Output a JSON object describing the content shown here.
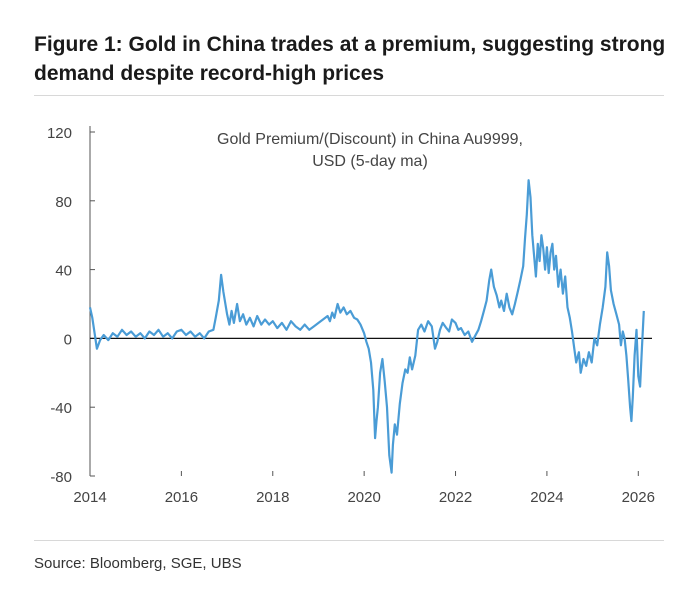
{
  "figure": {
    "title": "Figure 1: Gold in China trades at a premium, suggesting strong demand despite record-high prices",
    "source": "Source: Bloomberg, SGE, UBS"
  },
  "colors": {
    "series": "#4a9cd6",
    "zero_line": "#111111",
    "axis": "#555555"
  },
  "chart_data": {
    "type": "line",
    "title_lines": [
      "Gold Premium/(Discount)  in China Au9999,",
      "USD (5-day ma)"
    ],
    "xlabel": "",
    "ylabel": "",
    "xlim": [
      2014,
      2026.3
    ],
    "ylim": [
      -80,
      120
    ],
    "x_ticks": [
      2014,
      2016,
      2018,
      2020,
      2022,
      2024,
      2026
    ],
    "y_ticks": [
      120,
      80,
      40,
      0,
      -40,
      -80
    ],
    "grid": false,
    "series": [
      {
        "name": "Gold Premium/(Discount) in China Au9999, USD (5-day ma)",
        "points": [
          [
            2014.0,
            18
          ],
          [
            2014.05,
            12
          ],
          [
            2014.1,
            3
          ],
          [
            2014.15,
            -6
          ],
          [
            2014.22,
            -1
          ],
          [
            2014.3,
            2
          ],
          [
            2014.4,
            -1
          ],
          [
            2014.5,
            3
          ],
          [
            2014.6,
            1
          ],
          [
            2014.7,
            5
          ],
          [
            2014.8,
            2
          ],
          [
            2014.9,
            4
          ],
          [
            2015.0,
            1
          ],
          [
            2015.1,
            3
          ],
          [
            2015.2,
            0
          ],
          [
            2015.3,
            4
          ],
          [
            2015.4,
            2
          ],
          [
            2015.5,
            5
          ],
          [
            2015.6,
            1
          ],
          [
            2015.7,
            3
          ],
          [
            2015.8,
            0
          ],
          [
            2015.9,
            4
          ],
          [
            2016.0,
            5
          ],
          [
            2016.1,
            2
          ],
          [
            2016.2,
            4
          ],
          [
            2016.3,
            1
          ],
          [
            2016.4,
            3
          ],
          [
            2016.5,
            0
          ],
          [
            2016.6,
            4
          ],
          [
            2016.7,
            5
          ],
          [
            2016.75,
            12
          ],
          [
            2016.82,
            22
          ],
          [
            2016.87,
            37
          ],
          [
            2016.92,
            27
          ],
          [
            2017.0,
            14
          ],
          [
            2017.05,
            8
          ],
          [
            2017.1,
            16
          ],
          [
            2017.15,
            9
          ],
          [
            2017.22,
            20
          ],
          [
            2017.28,
            10
          ],
          [
            2017.35,
            14
          ],
          [
            2017.42,
            8
          ],
          [
            2017.5,
            12
          ],
          [
            2017.58,
            7
          ],
          [
            2017.66,
            13
          ],
          [
            2017.75,
            8
          ],
          [
            2017.83,
            11
          ],
          [
            2017.92,
            8
          ],
          [
            2018.0,
            10
          ],
          [
            2018.1,
            6
          ],
          [
            2018.2,
            9
          ],
          [
            2018.3,
            5
          ],
          [
            2018.4,
            10
          ],
          [
            2018.5,
            7
          ],
          [
            2018.6,
            5
          ],
          [
            2018.7,
            8
          ],
          [
            2018.8,
            5
          ],
          [
            2018.9,
            7
          ],
          [
            2019.0,
            9
          ],
          [
            2019.1,
            11
          ],
          [
            2019.2,
            13
          ],
          [
            2019.25,
            10
          ],
          [
            2019.3,
            15
          ],
          [
            2019.35,
            12
          ],
          [
            2019.42,
            20
          ],
          [
            2019.48,
            15
          ],
          [
            2019.55,
            18
          ],
          [
            2019.62,
            14
          ],
          [
            2019.7,
            16
          ],
          [
            2019.78,
            12
          ],
          [
            2019.85,
            11
          ],
          [
            2019.92,
            8
          ],
          [
            2020.0,
            3
          ],
          [
            2020.05,
            -2
          ],
          [
            2020.1,
            -6
          ],
          [
            2020.15,
            -14
          ],
          [
            2020.2,
            -30
          ],
          [
            2020.24,
            -58
          ],
          [
            2020.27,
            -48
          ],
          [
            2020.3,
            -40
          ],
          [
            2020.35,
            -20
          ],
          [
            2020.4,
            -12
          ],
          [
            2020.45,
            -25
          ],
          [
            2020.5,
            -40
          ],
          [
            2020.55,
            -68
          ],
          [
            2020.6,
            -78
          ],
          [
            2020.63,
            -62
          ],
          [
            2020.67,
            -50
          ],
          [
            2020.72,
            -56
          ],
          [
            2020.78,
            -38
          ],
          [
            2020.84,
            -26
          ],
          [
            2020.9,
            -18
          ],
          [
            2020.95,
            -20
          ],
          [
            2021.0,
            -11
          ],
          [
            2021.05,
            -18
          ],
          [
            2021.12,
            -10
          ],
          [
            2021.18,
            5
          ],
          [
            2021.25,
            8
          ],
          [
            2021.32,
            4
          ],
          [
            2021.4,
            10
          ],
          [
            2021.48,
            7
          ],
          [
            2021.55,
            -6
          ],
          [
            2021.6,
            -2
          ],
          [
            2021.66,
            5
          ],
          [
            2021.72,
            9
          ],
          [
            2021.8,
            6
          ],
          [
            2021.86,
            4
          ],
          [
            2021.92,
            11
          ],
          [
            2022.0,
            9
          ],
          [
            2022.06,
            5
          ],
          [
            2022.12,
            6
          ],
          [
            2022.2,
            2
          ],
          [
            2022.28,
            4
          ],
          [
            2022.36,
            -2
          ],
          [
            2022.42,
            1
          ],
          [
            2022.5,
            5
          ],
          [
            2022.56,
            10
          ],
          [
            2022.62,
            16
          ],
          [
            2022.68,
            22
          ],
          [
            2022.74,
            34
          ],
          [
            2022.78,
            40
          ],
          [
            2022.84,
            30
          ],
          [
            2022.9,
            25
          ],
          [
            2022.96,
            18
          ],
          [
            2023.0,
            22
          ],
          [
            2023.06,
            16
          ],
          [
            2023.12,
            26
          ],
          [
            2023.18,
            18
          ],
          [
            2023.24,
            14
          ],
          [
            2023.3,
            20
          ],
          [
            2023.36,
            27
          ],
          [
            2023.42,
            34
          ],
          [
            2023.48,
            42
          ],
          [
            2023.52,
            58
          ],
          [
            2023.56,
            72
          ],
          [
            2023.6,
            92
          ],
          [
            2023.64,
            82
          ],
          [
            2023.68,
            60
          ],
          [
            2023.72,
            48
          ],
          [
            2023.76,
            36
          ],
          [
            2023.8,
            55
          ],
          [
            2023.84,
            45
          ],
          [
            2023.88,
            60
          ],
          [
            2023.92,
            52
          ],
          [
            2023.96,
            40
          ],
          [
            2024.0,
            53
          ],
          [
            2024.04,
            38
          ],
          [
            2024.08,
            50
          ],
          [
            2024.12,
            55
          ],
          [
            2024.16,
            40
          ],
          [
            2024.2,
            48
          ],
          [
            2024.25,
            30
          ],
          [
            2024.3,
            40
          ],
          [
            2024.35,
            26
          ],
          [
            2024.4,
            36
          ],
          [
            2024.45,
            18
          ],
          [
            2024.5,
            12
          ],
          [
            2024.55,
            4
          ],
          [
            2024.6,
            -6
          ],
          [
            2024.64,
            -14
          ],
          [
            2024.7,
            -8
          ],
          [
            2024.74,
            -20
          ],
          [
            2024.8,
            -12
          ],
          [
            2024.86,
            -16
          ],
          [
            2024.92,
            -8
          ],
          [
            2024.98,
            -14
          ],
          [
            2025.04,
            0
          ],
          [
            2025.1,
            -4
          ],
          [
            2025.16,
            8
          ],
          [
            2025.22,
            18
          ],
          [
            2025.28,
            30
          ],
          [
            2025.32,
            50
          ],
          [
            2025.36,
            42
          ],
          [
            2025.4,
            28
          ],
          [
            2025.46,
            20
          ],
          [
            2025.52,
            14
          ],
          [
            2025.58,
            8
          ],
          [
            2025.62,
            -4
          ],
          [
            2025.66,
            4
          ],
          [
            2025.7,
            0
          ],
          [
            2025.74,
            -10
          ],
          [
            2025.78,
            -24
          ],
          [
            2025.82,
            -40
          ],
          [
            2025.85,
            -48
          ],
          [
            2025.88,
            -34
          ],
          [
            2025.92,
            -10
          ],
          [
            2025.96,
            5
          ],
          [
            2026.0,
            -22
          ],
          [
            2026.04,
            -28
          ],
          [
            2026.08,
            -6
          ],
          [
            2026.12,
            16
          ]
        ]
      }
    ]
  }
}
